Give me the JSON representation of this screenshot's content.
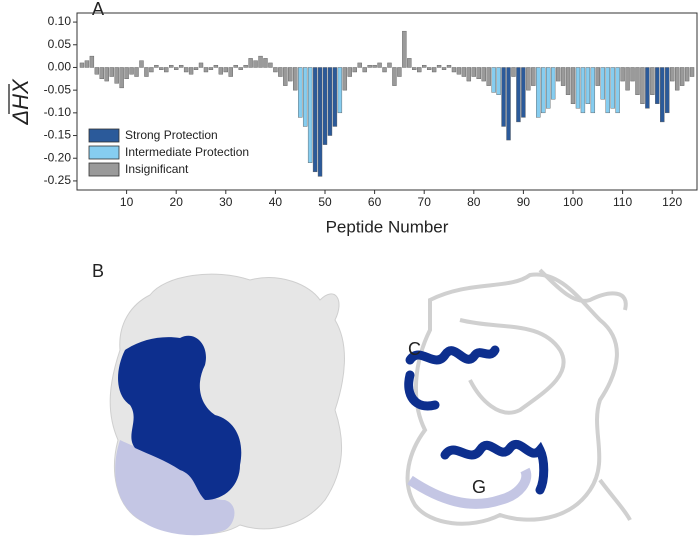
{
  "chart_data": {
    "type": "bar",
    "x_label": "Peptide Number",
    "y_label": "ΔHX",
    "x": [
      1,
      2,
      3,
      4,
      5,
      6,
      7,
      8,
      9,
      10,
      11,
      12,
      13,
      14,
      15,
      16,
      17,
      18,
      19,
      20,
      21,
      22,
      23,
      24,
      25,
      26,
      27,
      28,
      29,
      30,
      31,
      32,
      33,
      34,
      35,
      36,
      37,
      38,
      39,
      40,
      41,
      42,
      43,
      44,
      45,
      46,
      47,
      48,
      49,
      50,
      51,
      52,
      53,
      54,
      55,
      56,
      57,
      58,
      59,
      60,
      61,
      62,
      63,
      64,
      65,
      66,
      67,
      68,
      69,
      70,
      71,
      72,
      73,
      74,
      75,
      76,
      77,
      78,
      79,
      80,
      81,
      82,
      83,
      84,
      85,
      86,
      87,
      88,
      89,
      90,
      91,
      92,
      93,
      94,
      95,
      96,
      97,
      98,
      99,
      100,
      101,
      102,
      103,
      104,
      105,
      106,
      107,
      108,
      109,
      110,
      111,
      112,
      113,
      114,
      115,
      116,
      117,
      118,
      119,
      120,
      121,
      122,
      123,
      124
    ],
    "series": [
      {
        "name": "Strong Protection",
        "color": "#2b5a9a",
        "values": [
          null,
          null,
          null,
          null,
          null,
          null,
          null,
          null,
          null,
          null,
          null,
          null,
          null,
          null,
          null,
          null,
          null,
          null,
          null,
          null,
          null,
          null,
          null,
          null,
          null,
          null,
          null,
          null,
          null,
          null,
          null,
          null,
          null,
          null,
          null,
          null,
          null,
          null,
          null,
          null,
          null,
          null,
          null,
          null,
          null,
          null,
          null,
          -0.23,
          -0.24,
          -0.17,
          -0.15,
          -0.13,
          null,
          null,
          null,
          null,
          null,
          null,
          null,
          null,
          null,
          null,
          null,
          null,
          null,
          null,
          null,
          null,
          null,
          null,
          null,
          null,
          null,
          null,
          null,
          null,
          null,
          null,
          null,
          null,
          null,
          null,
          null,
          null,
          null,
          -0.13,
          -0.16,
          null,
          -0.12,
          -0.11,
          null,
          null,
          null,
          null,
          null,
          null,
          null,
          null,
          null,
          null,
          null,
          null,
          null,
          null,
          null,
          null,
          null,
          null,
          null,
          null,
          null,
          null,
          null,
          null,
          -0.09,
          null,
          -0.08,
          -0.12,
          -0.1,
          null,
          null,
          null,
          null,
          null
        ]
      },
      {
        "name": "Intermediate Protection",
        "color": "#86cdf0",
        "values": [
          null,
          null,
          null,
          null,
          null,
          null,
          null,
          null,
          null,
          null,
          null,
          null,
          null,
          null,
          null,
          null,
          null,
          null,
          null,
          null,
          null,
          null,
          null,
          null,
          null,
          null,
          null,
          null,
          null,
          null,
          null,
          null,
          null,
          null,
          null,
          null,
          null,
          null,
          null,
          null,
          null,
          null,
          null,
          null,
          -0.11,
          -0.13,
          -0.21,
          null,
          null,
          null,
          null,
          null,
          -0.1,
          null,
          null,
          null,
          null,
          null,
          null,
          null,
          null,
          null,
          null,
          null,
          null,
          null,
          null,
          null,
          null,
          null,
          null,
          null,
          null,
          null,
          null,
          null,
          null,
          null,
          null,
          null,
          null,
          null,
          null,
          -0.055,
          -0.06,
          null,
          null,
          null,
          null,
          null,
          null,
          null,
          -0.11,
          -0.1,
          -0.09,
          -0.07,
          null,
          null,
          null,
          null,
          -0.09,
          -0.1,
          -0.08,
          -0.1,
          null,
          -0.07,
          -0.1,
          -0.09,
          -0.1,
          null,
          null,
          null,
          null,
          null,
          null,
          null,
          null,
          null,
          null,
          null,
          null,
          null,
          null,
          null
        ]
      },
      {
        "name": "Insignificant",
        "color": "#9a9a9a",
        "values": [
          0.01,
          0.015,
          0.025,
          -0.015,
          -0.025,
          -0.03,
          -0.02,
          -0.035,
          -0.045,
          -0.025,
          -0.015,
          -0.02,
          0.015,
          -0.02,
          -0.01,
          0.005,
          -0.005,
          -0.01,
          0.005,
          -0.005,
          0.005,
          -0.01,
          -0.015,
          -0.005,
          0.01,
          -0.01,
          -0.005,
          0.005,
          -0.015,
          -0.01,
          -0.02,
          0.005,
          -0.005,
          0.005,
          0.02,
          0.015,
          0.025,
          0.02,
          0.01,
          -0.01,
          -0.02,
          -0.04,
          -0.03,
          -0.05,
          null,
          null,
          null,
          null,
          null,
          null,
          null,
          null,
          null,
          -0.05,
          -0.02,
          -0.01,
          0.01,
          -0.01,
          0.005,
          0.005,
          0.01,
          -0.01,
          0.01,
          -0.04,
          -0.02,
          0.08,
          0.02,
          -0.005,
          -0.01,
          0.005,
          -0.005,
          -0.01,
          0.005,
          -0.005,
          0.005,
          -0.01,
          -0.015,
          -0.02,
          -0.03,
          -0.02,
          -0.025,
          -0.03,
          -0.04,
          null,
          null,
          null,
          null,
          -0.02,
          null,
          null,
          -0.05,
          -0.04,
          null,
          null,
          null,
          null,
          -0.03,
          -0.04,
          -0.06,
          -0.08,
          null,
          null,
          null,
          null,
          -0.04,
          null,
          null,
          null,
          null,
          -0.03,
          -0.05,
          -0.03,
          -0.06,
          -0.08,
          null,
          -0.06,
          null,
          null,
          null,
          -0.03,
          -0.05,
          -0.04,
          -0.03,
          -0.02
        ]
      }
    ],
    "xlim": [
      0,
      125
    ],
    "ylim": [
      -0.27,
      0.12
    ],
    "xticks": [
      10,
      20,
      30,
      40,
      50,
      60,
      70,
      80,
      90,
      100,
      110,
      120
    ],
    "yticks": [
      {
        "value": 0.1,
        "label": "0.10"
      },
      {
        "value": 0.05,
        "label": "0.05"
      },
      {
        "value": 0,
        "label": "0.00"
      },
      {
        "value": -0.05,
        "label": "-0.05"
      },
      {
        "value": -0.1,
        "label": "-0.10"
      },
      {
        "value": -0.15,
        "label": "-0.15"
      },
      {
        "value": -0.2,
        "label": "-0.20"
      },
      {
        "value": -0.25,
        "label": "-0.25"
      }
    ],
    "legend": "lower left"
  },
  "panels": {
    "a_label": "A",
    "b_label": "B",
    "helix_c": "C",
    "helix_g": "G"
  }
}
